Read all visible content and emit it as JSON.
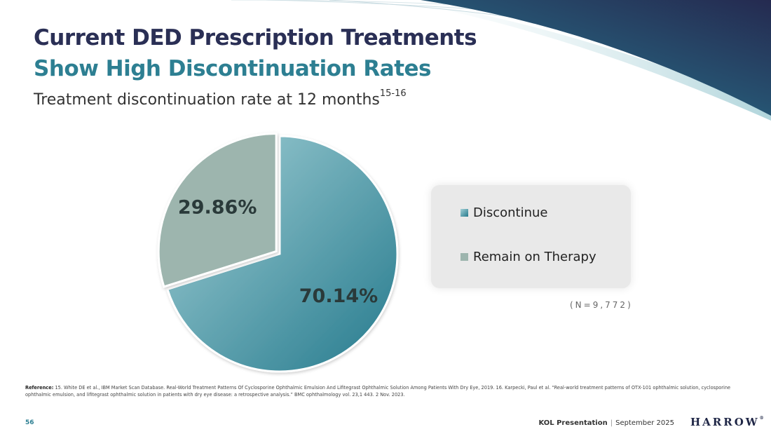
{
  "slide": {
    "title_line1": "Current DED Prescription Treatments",
    "title_line2": "Show High Discontinuation Rates",
    "subtitle": "Treatment discontinuation rate at 12 months",
    "subtitle_superscript": "15-16",
    "sample_note": "(N=9,772)",
    "reference_label": "Reference:",
    "reference_text": "15. White DE et al., IBM Market Scan Database. Real-World Treatment Patterns Of Cyclosporine Ophthalmic Emulsion And Lifitegrast Ophthalmic Solution Among Patients With Dry Eye, 2019. 16. Karpecki, Paul et al. “Real-world treatment patterns of OTX-101 ophthalmic solution, cyclosporine ophthalmic emulsion, and lifitegrast ophthalmic solution in patients with dry eye disease: a retrospective analysis.” BMC ophthalmology vol. 23,1 443. 2 Nov. 2023.",
    "page_number": "56",
    "footer_presentation": "KOL Presentation",
    "footer_separator": "|",
    "footer_date": "September 2025",
    "logo_text": "HARROW",
    "logo_mark": "®"
  },
  "colors": {
    "title_dark": "#2a2f55",
    "title_teal": "#2d7f92",
    "discontinue_light": "#a3d0d6",
    "discontinue_dark": "#257a8d",
    "remain": "#9db5ae",
    "label_text": "#2a3a3a"
  },
  "chart_data": {
    "type": "pie",
    "title": "Treatment discontinuation rate at 12 months",
    "categories": [
      "Discontinue",
      "Remain on Therapy"
    ],
    "values": [
      70.14,
      29.86
    ],
    "data_labels": [
      "70.14%",
      "29.86%"
    ],
    "exploded": "Remain on Therapy",
    "legend": {
      "placement": "right",
      "items": [
        "Discontinue",
        "Remain on Therapy"
      ]
    }
  }
}
